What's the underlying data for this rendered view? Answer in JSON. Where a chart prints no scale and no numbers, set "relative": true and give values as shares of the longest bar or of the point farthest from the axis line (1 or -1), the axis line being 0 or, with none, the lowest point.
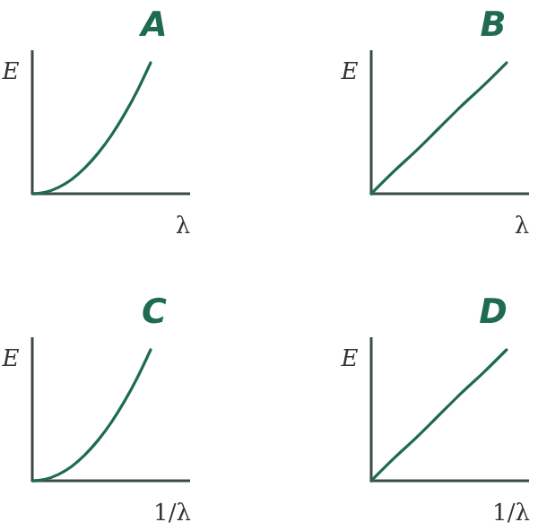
{
  "chart_data": [
    {
      "type": "line",
      "title": "A",
      "ylabel": "E",
      "xlabel": "λ",
      "relative": true,
      "categories": [
        null,
        null,
        null,
        null,
        null,
        null,
        null,
        null,
        null,
        null,
        null,
        null,
        null
      ],
      "series": [
        {
          "color": "#1f6b52",
          "values": [
            0,
            0.012,
            0.049,
            0.11,
            0.198,
            0.309,
            0.444,
            0.605,
            0.79,
            1,
            null,
            null,
            null
          ]
        }
      ]
    },
    {
      "type": "line",
      "title": "B",
      "ylabel": "E",
      "xlabel": "λ",
      "relative": true,
      "categories": [
        null,
        null,
        null,
        null,
        null,
        null,
        null,
        null
      ],
      "series": [
        {
          "color": "#1f6b52",
          "values": [
            0,
            0.17,
            0.33,
            0.5,
            0.67,
            0.83,
            1,
            null
          ]
        }
      ]
    },
    {
      "type": "line",
      "title": "C",
      "ylabel": "E",
      "xlabel": "1/λ",
      "relative": true,
      "categories": [
        null,
        null,
        null,
        null,
        null,
        null,
        null,
        null,
        null,
        null,
        null,
        null,
        null
      ],
      "series": [
        {
          "color": "#1f6b52",
          "values": [
            0,
            0.012,
            0.049,
            0.11,
            0.198,
            0.309,
            0.444,
            0.605,
            0.79,
            1,
            null,
            null,
            null
          ]
        }
      ]
    },
    {
      "type": "line",
      "title": "D",
      "ylabel": "E",
      "xlabel": "1/λ",
      "relative": true,
      "categories": [
        null,
        null,
        null,
        null,
        null,
        null,
        null,
        null
      ],
      "series": [
        {
          "color": "#1f6b52",
          "values": [
            0,
            0.17,
            0.33,
            0.5,
            0.67,
            0.83,
            1,
            null
          ]
        }
      ]
    }
  ]
}
